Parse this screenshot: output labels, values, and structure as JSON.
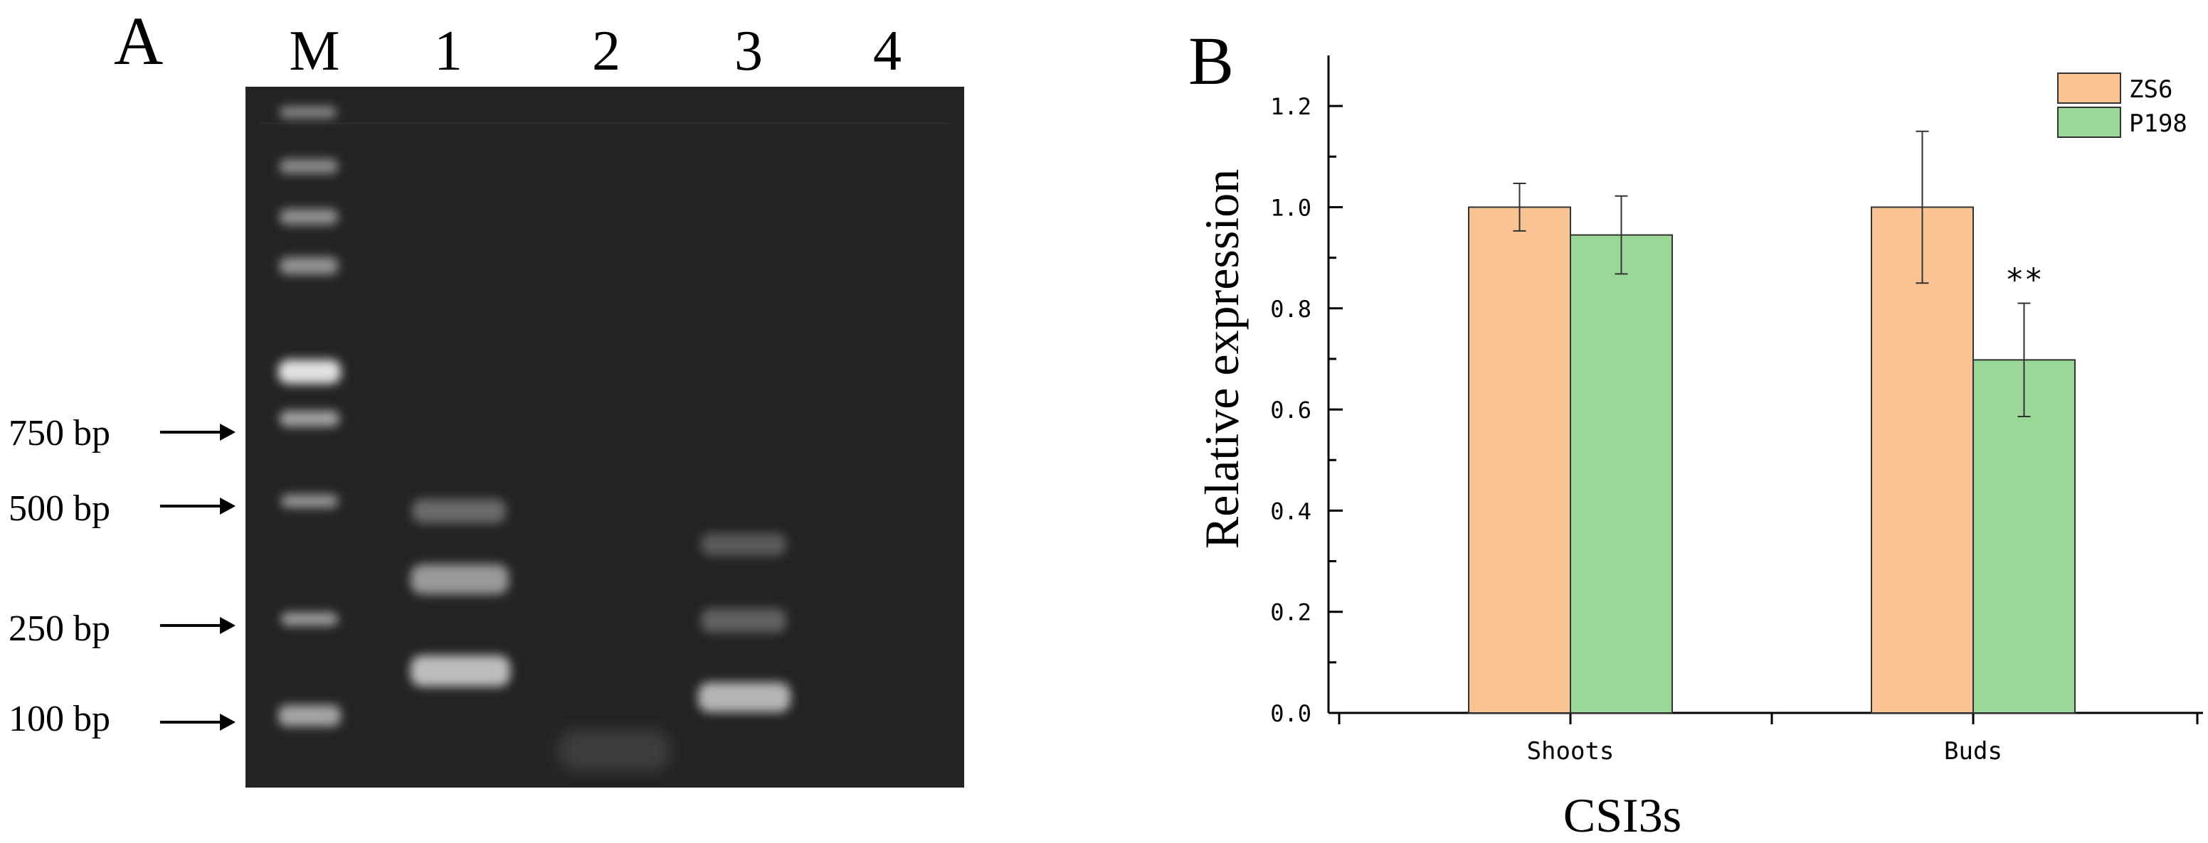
{
  "panel_a": {
    "letter": "A",
    "lane_labels": [
      "M",
      "1",
      "2",
      "3",
      "4"
    ],
    "size_markers": [
      "750 bp",
      "500 bp",
      "250 bp",
      "100 bp"
    ]
  },
  "panel_b": {
    "letter": "B"
  },
  "chart_data": {
    "type": "bar",
    "categories": [
      "Shoots",
      "Buds"
    ],
    "series": [
      {
        "name": "ZS6",
        "values": [
          1.0,
          1.0
        ],
        "errors": [
          0.047,
          0.15
        ],
        "color": "#f9c394"
      },
      {
        "name": "P198",
        "values": [
          0.945,
          0.698
        ],
        "errors": [
          0.077,
          0.112
        ],
        "color": "#9bd897"
      }
    ],
    "annotations": [
      {
        "category": "Buds",
        "series": "P198",
        "text": "**"
      }
    ],
    "xlabel": "CSI3s",
    "ylabel": "Relative expression",
    "ylim": [
      0,
      1.3
    ],
    "yticks": [
      "0.0",
      "0.2",
      "0.4",
      "0.6",
      "0.8",
      "1.0",
      "1.2"
    ],
    "legend_position": "top-right",
    "grid": false
  }
}
